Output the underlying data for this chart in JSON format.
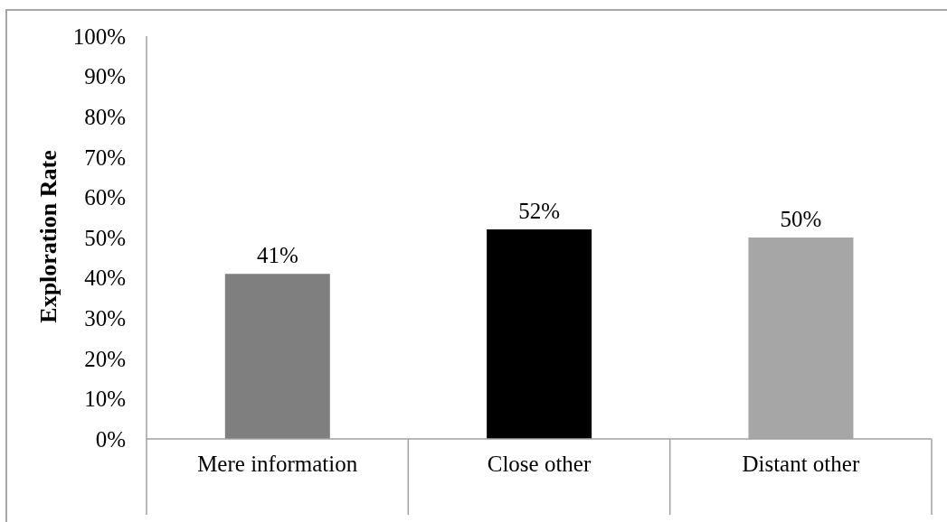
{
  "chart_data": {
    "type": "bar",
    "ylabel": "Exploration Rate",
    "categories": [
      "Mere information",
      "Close other",
      "Distant other"
    ],
    "values": [
      41,
      52,
      50
    ],
    "colors": [
      "#7f7f7f",
      "#000000",
      "#a6a6a6"
    ],
    "value_labels": [
      "41%",
      "52%",
      "50%"
    ],
    "ylim": [
      0,
      100
    ],
    "yticks": [
      {
        "value": 0,
        "label": "0%"
      },
      {
        "value": 10,
        "label": "10%"
      },
      {
        "value": 20,
        "label": "20%"
      },
      {
        "value": 30,
        "label": "30%"
      },
      {
        "value": 40,
        "label": "40%"
      },
      {
        "value": 50,
        "label": "50%"
      },
      {
        "value": 60,
        "label": "60%"
      },
      {
        "value": 70,
        "label": "70%"
      },
      {
        "value": 80,
        "label": "80%"
      },
      {
        "value": 90,
        "label": "90%"
      },
      {
        "value": 100,
        "label": "100%"
      }
    ]
  }
}
